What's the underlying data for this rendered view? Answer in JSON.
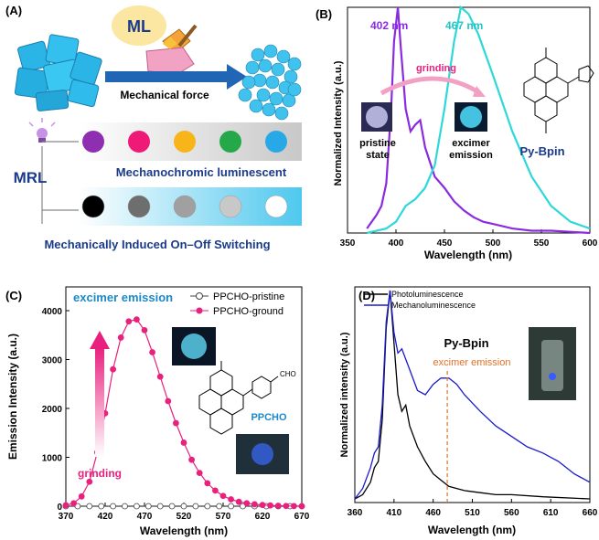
{
  "panelA": {
    "label": "(A)",
    "ml_bubble": "ML",
    "arrow_label": "Mechanical force",
    "mrl_label": "MRL",
    "row1_caption": "Mechanochromic luminescent",
    "row2_caption": "Mechanically Induced On–Off Switching",
    "colors": {
      "row1_dots": [
        "#8e2fb2",
        "#ef1a78",
        "#f7b519",
        "#25a84a",
        "#29a8e8"
      ],
      "row2_dots": [
        "#000000",
        "#6e6e6e",
        "#a0a0a0",
        "#c8c8c8",
        "#ffffff"
      ],
      "crystal": "#2bb5e6",
      "arrow": "#2166b5",
      "bubble": "#fbe7a1"
    }
  },
  "panelB": {
    "label": "(B)",
    "peak1": "402 nm",
    "peak2": "467 nm",
    "arrow_text": "grinding",
    "state1_line1": "pristine",
    "state1_line2": "state",
    "state2_line1": "excimer",
    "state2_line2": "emission",
    "compound": "Py-Bpin",
    "xlabel": "Wavelength (nm)",
    "ylabel": "Normalized Intensity (a.u.)",
    "xticks": [
      "350",
      "400",
      "450",
      "500",
      "550",
      "600"
    ]
  },
  "panelC": {
    "label": "(C)",
    "title": "excimer emission",
    "legend1": "PPCHO-pristine",
    "legend2": "PPCHO-ground",
    "arrow_text": "grinding",
    "compound": "PPCHO",
    "cho": "CHO",
    "xlabel": "Wavelength (nm)",
    "ylabel": "Emission Intensity (a.u.)",
    "xticks": [
      "370",
      "420",
      "470",
      "520",
      "570",
      "620",
      "670"
    ],
    "yticks": [
      "0",
      "1000",
      "2000",
      "3000",
      "4000"
    ]
  },
  "panelD": {
    "label": "(D)",
    "legend1": "Photoluminescence",
    "legend2": "Mechanoluminescence",
    "compound": "Py-Bpin",
    "annotation": "excimer emission",
    "xlabel": "Wavelength (nm)",
    "ylabel": "Normalized intensity (a.u.)",
    "xticks": [
      "360",
      "410",
      "460",
      "510",
      "560",
      "610",
      "660"
    ]
  },
  "chart_data": [
    {
      "type": "line",
      "panel": "B",
      "xlabel": "Wavelength (nm)",
      "ylabel": "Normalized Intensity (a.u.)",
      "xlim": [
        350,
        600
      ],
      "ylim": [
        0,
        1
      ],
      "series": [
        {
          "color": "#8a2be2",
          "x": [
            370,
            380,
            385,
            390,
            395,
            398,
            402,
            405,
            410,
            415,
            420,
            425,
            430,
            440,
            450,
            460,
            470,
            480,
            490,
            500,
            520,
            540,
            560,
            600
          ],
          "values": [
            0.02,
            0.08,
            0.12,
            0.22,
            0.55,
            0.85,
            1.0,
            0.82,
            0.55,
            0.45,
            0.48,
            0.5,
            0.38,
            0.25,
            0.2,
            0.14,
            0.1,
            0.07,
            0.05,
            0.04,
            0.02,
            0.01,
            0.01,
            0.0
          ]
        },
        {
          "color": "#2ed8d8",
          "x": [
            370,
            390,
            400,
            410,
            420,
            430,
            440,
            450,
            460,
            467,
            475,
            485,
            500,
            520,
            540,
            560,
            580,
            600
          ],
          "values": [
            0.0,
            0.02,
            0.05,
            0.12,
            0.15,
            0.2,
            0.3,
            0.55,
            0.85,
            1.0,
            0.97,
            0.88,
            0.7,
            0.45,
            0.25,
            0.12,
            0.05,
            0.02
          ]
        }
      ]
    },
    {
      "type": "line",
      "panel": "C",
      "xlabel": "Wavelength (nm)",
      "ylabel": "Emission Intensity (a.u.)",
      "xlim": [
        370,
        670
      ],
      "ylim": [
        0,
        4000
      ],
      "series": [
        {
          "name": "PPCHO-pristine",
          "color": "#444444",
          "x": [
            370,
            385,
            400,
            415,
            430,
            445,
            460,
            475,
            490,
            505,
            520,
            535,
            550,
            565,
            580,
            595,
            610,
            625,
            640,
            655,
            670
          ],
          "values": [
            0,
            0,
            0,
            0,
            0,
            0,
            0,
            0,
            0,
            0,
            0,
            0,
            0,
            0,
            0,
            0,
            0,
            0,
            0,
            0,
            0
          ]
        },
        {
          "name": "PPCHO-ground",
          "color": "#e8217e",
          "x": [
            370,
            380,
            390,
            400,
            410,
            420,
            430,
            440,
            450,
            460,
            470,
            480,
            490,
            500,
            510,
            520,
            530,
            540,
            550,
            560,
            570,
            580,
            590,
            600,
            610,
            620,
            630,
            640,
            650,
            660,
            670
          ],
          "values": [
            20,
            60,
            200,
            500,
            1100,
            1900,
            2800,
            3450,
            3780,
            3820,
            3600,
            3150,
            2650,
            2150,
            1700,
            1300,
            950,
            680,
            470,
            320,
            210,
            140,
            90,
            60,
            40,
            25,
            15,
            10,
            5,
            3,
            0
          ]
        }
      ]
    },
    {
      "type": "line",
      "panel": "D",
      "xlabel": "Wavelength (nm)",
      "ylabel": "Normalized intensity (a.u.)",
      "xlim": [
        360,
        660
      ],
      "ylim": [
        0,
        1
      ],
      "series": [
        {
          "name": "Photoluminescence",
          "color": "#000000",
          "x": [
            360,
            370,
            380,
            385,
            390,
            395,
            400,
            405,
            410,
            415,
            420,
            425,
            430,
            440,
            450,
            460,
            470,
            480,
            490,
            500,
            520,
            540,
            560,
            600,
            660
          ],
          "values": [
            0.0,
            0.02,
            0.08,
            0.15,
            0.18,
            0.38,
            0.82,
            1.0,
            0.75,
            0.5,
            0.42,
            0.45,
            0.35,
            0.25,
            0.18,
            0.12,
            0.09,
            0.06,
            0.05,
            0.04,
            0.03,
            0.02,
            0.02,
            0.01,
            0.0
          ]
        },
        {
          "name": "Mechanoluminescence",
          "color": "#1a1acc",
          "x": [
            360,
            370,
            380,
            385,
            390,
            395,
            400,
            405,
            410,
            415,
            420,
            430,
            440,
            450,
            460,
            470,
            480,
            490,
            500,
            520,
            540,
            560,
            580,
            600,
            620,
            640,
            660
          ],
          "values": [
            0.0,
            0.05,
            0.15,
            0.22,
            0.25,
            0.45,
            0.85,
            1.0,
            0.8,
            0.7,
            0.72,
            0.62,
            0.52,
            0.5,
            0.55,
            0.58,
            0.58,
            0.55,
            0.5,
            0.42,
            0.35,
            0.3,
            0.25,
            0.22,
            0.18,
            0.12,
            0.08
          ]
        }
      ]
    }
  ]
}
